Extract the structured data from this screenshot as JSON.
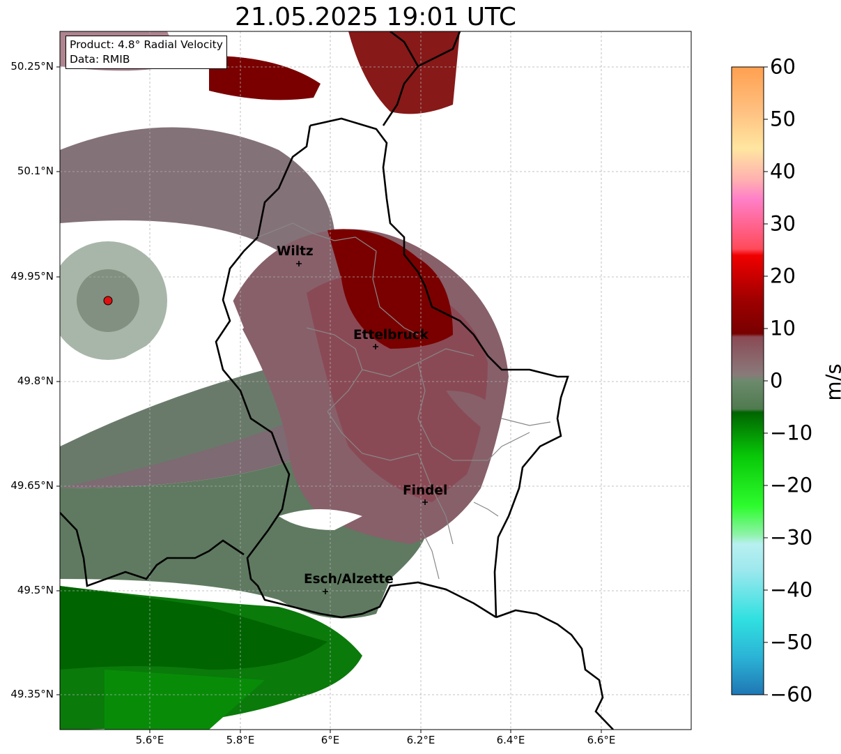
{
  "title": "21.05.2025 19:01 UTC",
  "info": {
    "product": "Product: 4.8° Radial Velocity",
    "source": "Data: RMIB"
  },
  "axes": {
    "lat_ticks": [
      "50.25°N",
      "50.1°N",
      "49.95°N",
      "49.8°N",
      "49.65°N",
      "49.5°N",
      "49.35°N"
    ],
    "lon_ticks": [
      "5.6°E",
      "5.8°E",
      "6°E",
      "6.2°E",
      "6.4°E",
      "6.6°E"
    ]
  },
  "colorbar": {
    "unit": "m/s",
    "labels": [
      "60",
      "50",
      "40",
      "30",
      "20",
      "10",
      "0",
      "−10",
      "−20",
      "−30",
      "−40",
      "−50",
      "−60"
    ],
    "range": [
      -60,
      60
    ]
  },
  "cities": [
    {
      "name": "Wiltz"
    },
    {
      "name": "Ettelbruck"
    },
    {
      "name": "Findel"
    },
    {
      "name": "Esch/Alzette"
    }
  ],
  "radar_site_icon": "red-dot-marker",
  "colors": {
    "inbound_strong": "#006400",
    "inbound": "#5e7a5e",
    "neutral": "#7d6a72",
    "outbound": "#8a4a55",
    "outbound_strong": "#7a0000",
    "border": "#000000"
  }
}
